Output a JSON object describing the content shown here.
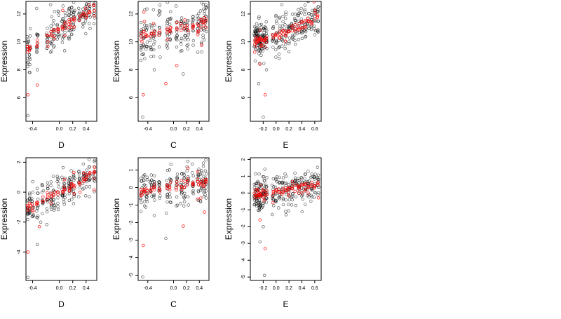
{
  "chart_data": [
    {
      "type": "scatter",
      "xlabel": "D",
      "ylabel": "Expression",
      "xlim": [
        -0.5,
        0.56
      ],
      "ylim": [
        4.3,
        12.9
      ],
      "xticks": [
        "-0.4",
        "0.0",
        "0.2",
        "0.4"
      ],
      "yticks": [
        "6",
        "8",
        "10",
        "12"
      ],
      "gen": {
        "mode": "linear",
        "a": 10.9,
        "b": 3.0,
        "s": 0.7,
        "seed": 11
      },
      "clusters": [
        -0.47,
        -0.44,
        -0.33,
        -0.18,
        -0.12,
        -0.08,
        -0.02,
        0.05,
        0.08,
        0.15,
        0.18,
        0.22,
        0.3,
        0.36,
        0.4,
        0.45,
        0.52
      ],
      "outliers": [
        [
          -0.47,
          4.7
        ],
        [
          -0.47,
          6.2
        ],
        [
          -0.44,
          7.8
        ],
        [
          -0.33,
          6.9
        ],
        [
          -0.33,
          8.0
        ]
      ]
    },
    {
      "type": "scatter",
      "xlabel": "C",
      "ylabel": "Expression",
      "xlim": [
        -0.55,
        0.55
      ],
      "ylim": [
        4.3,
        12.9
      ],
      "xticks": [
        "-0.4",
        "0.0",
        "0.2",
        "0.4"
      ],
      "yticks": [
        "6",
        "8",
        "10",
        "12"
      ],
      "gen": {
        "mode": "linear",
        "a": 10.9,
        "b": 0.9,
        "s": 0.8,
        "seed": 23
      },
      "clusters": [
        -0.5,
        -0.46,
        -0.42,
        -0.35,
        -0.3,
        -0.22,
        -0.1,
        -0.05,
        0.05,
        0.12,
        0.17,
        0.22,
        0.3,
        0.38,
        0.43,
        0.47,
        0.5
      ],
      "outliers": [
        [
          -0.48,
          4.6
        ],
        [
          -0.47,
          6.2
        ],
        [
          -0.3,
          8.0
        ],
        [
          -0.12,
          7.0
        ],
        [
          0.15,
          7.7
        ],
        [
          0.05,
          8.3
        ]
      ]
    },
    {
      "type": "scatter",
      "xlabel": "E",
      "ylabel": "Expression",
      "xlim": [
        -0.4,
        0.7
      ],
      "ylim": [
        4.3,
        12.9
      ],
      "xticks": [
        "-0.2",
        "0.0",
        "0.2",
        "0.4",
        "0.6"
      ],
      "yticks": [
        "6",
        "8",
        "10",
        "12"
      ],
      "gen": {
        "mode": "curve",
        "a": 10.4,
        "b": 1.5,
        "c": 1.4,
        "s": 0.7,
        "seed": 37
      },
      "clusters": [
        -0.33,
        -0.31,
        -0.29,
        -0.27,
        -0.25,
        -0.23,
        -0.2,
        -0.18,
        -0.15,
        -0.05,
        0.0,
        0.05,
        0.1,
        0.15,
        0.2,
        0.25,
        0.3,
        0.35,
        0.4,
        0.45,
        0.5,
        0.55,
        0.6,
        0.65
      ],
      "outliers": [
        [
          -0.2,
          4.6
        ],
        [
          -0.17,
          6.2
        ],
        [
          -0.27,
          7.0
        ],
        [
          -0.25,
          8.4
        ],
        [
          -0.15,
          8.0
        ]
      ]
    },
    {
      "type": "scatter",
      "xlabel": "D",
      "ylabel": "Expression",
      "xlim": [
        -0.5,
        0.56
      ],
      "ylim": [
        -5.9,
        2.3
      ],
      "xticks": [
        "-0.4",
        "0.0",
        "0.2",
        "0.4"
      ],
      "yticks": [
        "-4",
        "-2",
        "0",
        "2"
      ],
      "gen": {
        "mode": "linear",
        "a": 0.0,
        "b": 2.3,
        "s": 0.55,
        "seed": 51
      },
      "clusters": [
        -0.47,
        -0.44,
        -0.4,
        -0.33,
        -0.25,
        -0.18,
        -0.12,
        -0.08,
        -0.02,
        0.05,
        0.08,
        0.15,
        0.18,
        0.22,
        0.3,
        0.36,
        0.4,
        0.45,
        0.52
      ],
      "outliers": [
        [
          -0.47,
          -5.7
        ],
        [
          -0.47,
          -4.0
        ],
        [
          -0.33,
          -3.5
        ],
        [
          -0.3,
          -2.3
        ],
        [
          -0.28,
          -2.0
        ]
      ]
    },
    {
      "type": "scatter",
      "xlabel": "C",
      "ylabel": "Expression",
      "xlim": [
        -0.55,
        0.55
      ],
      "ylim": [
        -5.3,
        1.7
      ],
      "xticks": [
        "-0.4",
        "0.0",
        "0.2",
        "0.4"
      ],
      "yticks": [
        "-5",
        "-4",
        "-3",
        "-2",
        "-1",
        "0",
        "1"
      ],
      "gen": {
        "mode": "linear",
        "a": 0.05,
        "b": 0.5,
        "s": 0.5,
        "seed": 67
      },
      "clusters": [
        -0.5,
        -0.46,
        -0.42,
        -0.35,
        -0.3,
        -0.22,
        -0.1,
        -0.05,
        0.05,
        0.12,
        0.17,
        0.22,
        0.3,
        0.38,
        0.43,
        0.47,
        0.5
      ],
      "outliers": [
        [
          -0.48,
          -5.1
        ],
        [
          -0.47,
          -3.3
        ],
        [
          -0.12,
          -2.9
        ],
        [
          0.15,
          -2.2
        ],
        [
          -0.3,
          -1.6
        ],
        [
          0.48,
          -1.4
        ]
      ]
    },
    {
      "type": "scatter",
      "xlabel": "E",
      "ylabel": "Expression",
      "xlim": [
        -0.4,
        0.7
      ],
      "ylim": [
        -5.2,
        2.1
      ],
      "xticks": [
        "-0.2",
        "0.0",
        "0.2",
        "0.4",
        "0.6"
      ],
      "yticks": [
        "-5",
        "-4",
        "-3",
        "-2",
        "-1",
        "0",
        "1",
        "2"
      ],
      "gen": {
        "mode": "linear",
        "a": 0.1,
        "b": 0.65,
        "s": 0.5,
        "seed": 83
      },
      "clusters": [
        -0.33,
        -0.31,
        -0.29,
        -0.27,
        -0.25,
        -0.23,
        -0.2,
        -0.18,
        -0.15,
        -0.05,
        0.0,
        0.05,
        0.1,
        0.15,
        0.2,
        0.25,
        0.3,
        0.35,
        0.4,
        0.45,
        0.5,
        0.55,
        0.6,
        0.65
      ],
      "outliers": [
        [
          -0.18,
          -4.9
        ],
        [
          -0.17,
          -3.3
        ],
        [
          -0.25,
          -2.9
        ],
        [
          -0.25,
          -1.6
        ],
        [
          -0.2,
          -2.0
        ]
      ]
    }
  ],
  "colors": {
    "observed": "#000000",
    "fitted": "#ff0000",
    "frame": "#000000"
  }
}
